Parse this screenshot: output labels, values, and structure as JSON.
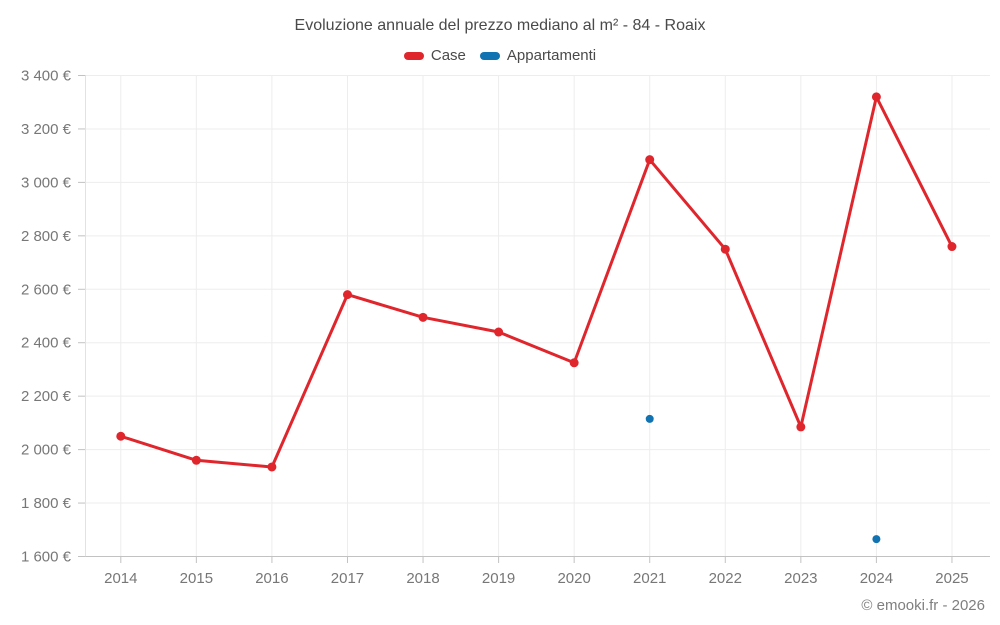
{
  "legend": {
    "items": [
      {
        "label": "Case",
        "color": "#e0262d"
      },
      {
        "label": "Appartamenti",
        "color": "#1173b2"
      }
    ]
  },
  "footer": {
    "credit": "© emooki.fr - 2026"
  },
  "chart_data": {
    "type": "line",
    "title": "Evoluzione annuale del prezzo mediano al m² - 84 - Roaix",
    "xlabel": "",
    "ylabel": "",
    "categories": [
      "2014",
      "2015",
      "2016",
      "2017",
      "2018",
      "2019",
      "2020",
      "2021",
      "2022",
      "2023",
      "2024",
      "2025"
    ],
    "series": [
      {
        "name": "Case",
        "color": "#e0262d",
        "style": "line+markers",
        "values": [
          2050,
          1960,
          1935,
          2580,
          2495,
          2440,
          2325,
          3085,
          2750,
          2085,
          3320,
          2760
        ]
      },
      {
        "name": "Appartamenti",
        "color": "#1173b2",
        "style": "markers",
        "values": [
          null,
          null,
          null,
          null,
          null,
          null,
          null,
          2115,
          null,
          null,
          1665,
          null
        ]
      }
    ],
    "ylim": [
      1600,
      3400
    ],
    "ytick_step": 200,
    "yticks": [
      "1 600 €",
      "1 800 €",
      "2 000 €",
      "2 200 €",
      "2 400 €",
      "2 600 €",
      "2 800 €",
      "3 000 €",
      "3 200 €",
      "3 400 €"
    ],
    "grid": true,
    "legend_position": "top"
  }
}
